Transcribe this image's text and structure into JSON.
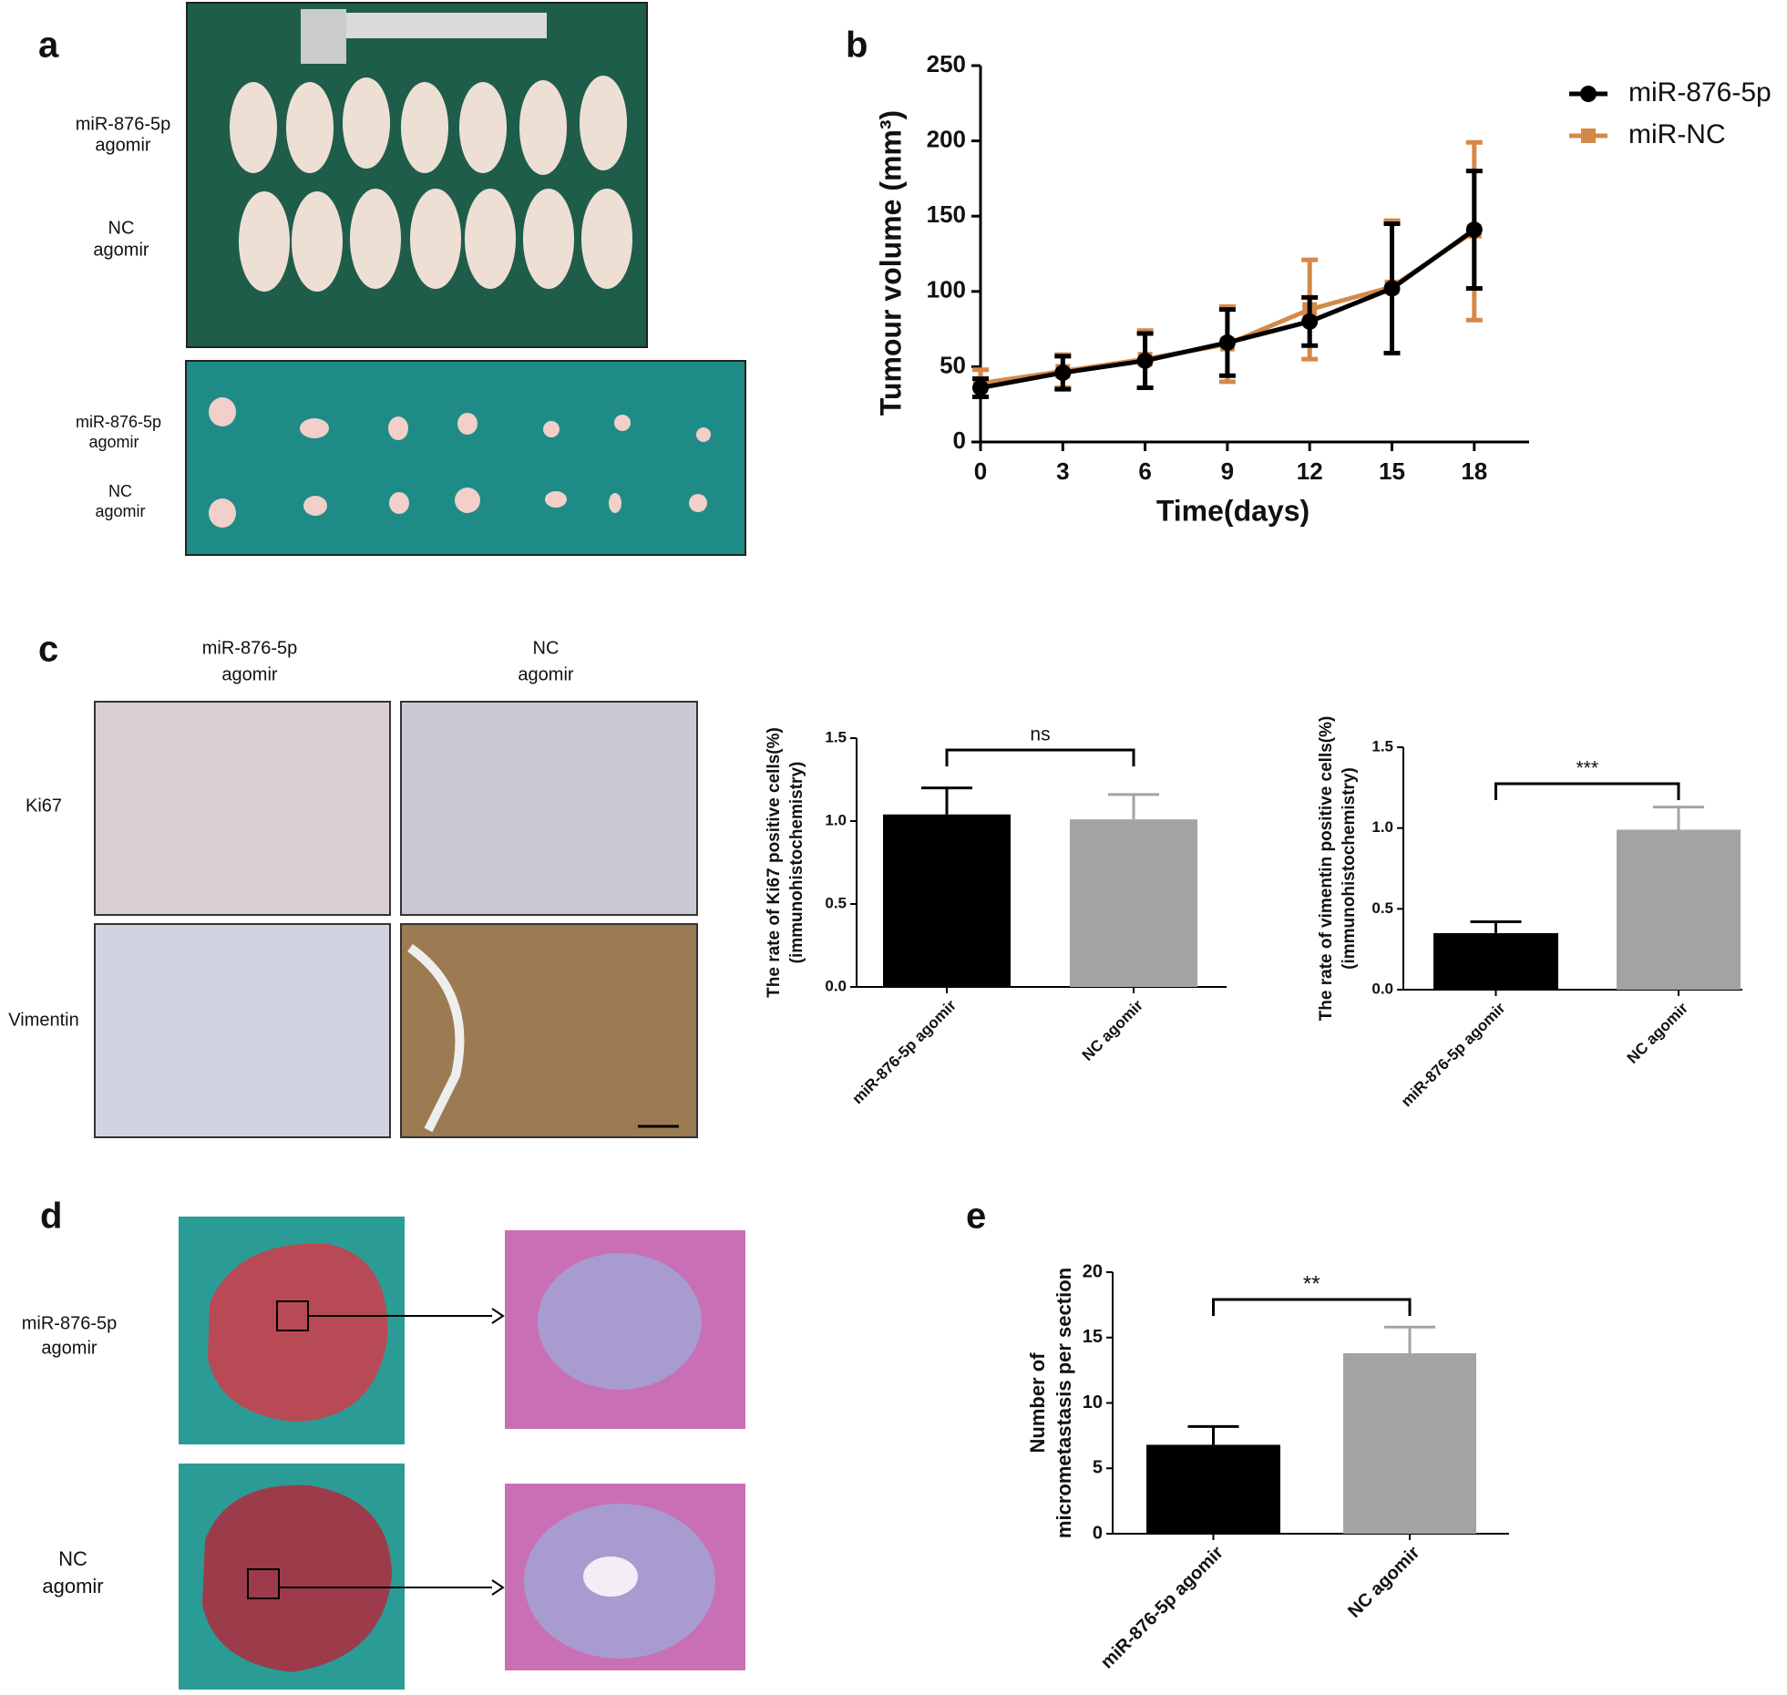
{
  "panel_letters": [
    "a",
    "b",
    "c",
    "d",
    "e"
  ],
  "panel_a": {
    "photo_rows": [
      [
        "miR-876-5p",
        "agomir"
      ],
      [
        "NC",
        "agomir"
      ],
      [
        "miR-876-5p",
        "agomir"
      ],
      [
        "NC",
        "agomir"
      ]
    ]
  },
  "panel_c": {
    "columns": [
      [
        "miR-876-5p",
        "agomir"
      ],
      [
        "NC",
        "agomir"
      ]
    ],
    "rows": [
      "Ki67",
      "Vimentin"
    ]
  },
  "panel_d": {
    "rows": [
      [
        "miR-876-5p",
        "agomir"
      ],
      [
        "NC",
        "agomir"
      ]
    ]
  },
  "chart_data": [
    {
      "type": "line",
      "xlabel": "Time(days)",
      "ylabel": "Tumour volume (mm³)",
      "x": [
        0,
        3,
        6,
        9,
        12,
        15,
        18
      ],
      "xlim": [
        0,
        20
      ],
      "xticks": [
        0,
        3,
        6,
        9,
        12,
        15,
        18
      ],
      "ylim": [
        0,
        250
      ],
      "yticks": [
        0,
        50,
        100,
        150,
        200,
        250
      ],
      "legend": "right",
      "series": [
        {
          "name": "miR-NC",
          "color": "#d4894a",
          "marker": "square",
          "values": [
            39,
            47,
            55,
            65,
            88,
            103,
            140
          ],
          "errors": [
            9,
            11,
            19,
            25,
            33,
            44,
            59
          ]
        },
        {
          "name": "miR-876-5p",
          "color": "#000000",
          "marker": "circle",
          "values": [
            36,
            46,
            54,
            66,
            80,
            102,
            141
          ],
          "errors": [
            6,
            11,
            18,
            22,
            16,
            43,
            39
          ]
        }
      ]
    },
    {
      "type": "bar",
      "ylabel": [
        "The rate of Ki67 positive cells(%)",
        "(immunohistochemistry)"
      ],
      "categories": [
        "miR-876-5p agomir",
        "NC agomir"
      ],
      "values": [
        1.04,
        1.01
      ],
      "errors": [
        0.16,
        0.15
      ],
      "colors": [
        "#000000",
        "#a3a3a6"
      ],
      "ylim": [
        0,
        1.5
      ],
      "yticks": [
        {
          "value": 0,
          "label": "0.0"
        },
        0.5,
        {
          "value": 1,
          "label": "1.0"
        },
        1.5
      ],
      "annotation": "ns"
    },
    {
      "type": "bar",
      "ylabel": [
        "The rate of vimentin positive cells(%)",
        "(immunohistochemistry)"
      ],
      "categories": [
        "miR-876-5p agomir",
        "NC agomir"
      ],
      "values": [
        0.35,
        0.99
      ],
      "errors": [
        0.07,
        0.14
      ],
      "colors": [
        "#000000",
        "#a3a3a6"
      ],
      "ylim": [
        0,
        1.5
      ],
      "yticks": [
        {
          "value": 0,
          "label": "0.0"
        },
        0.5,
        {
          "value": 1,
          "label": "1.0"
        },
        1.5
      ],
      "annotation": "***"
    },
    {
      "type": "bar",
      "ylabel": [
        "Number of",
        "micrometastasis per section"
      ],
      "categories": [
        "miR-876-5p agomir",
        "NC agomir"
      ],
      "values": [
        6.8,
        13.8
      ],
      "errors": [
        1.4,
        2.0
      ],
      "colors": [
        "#000000",
        "#a3a3a6"
      ],
      "ylim": [
        0,
        20
      ],
      "yticks": [
        0,
        5,
        10,
        15,
        20
      ],
      "annotation": "**"
    }
  ]
}
